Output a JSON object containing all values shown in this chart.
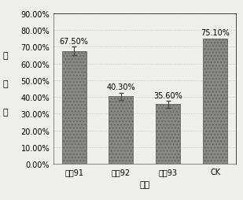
{
  "categories": [
    "处琗91",
    "处琗92",
    "处琗93",
    "CK"
  ],
  "values": [
    0.675,
    0.403,
    0.356,
    0.751
  ],
  "labels": [
    "67.50%",
    "40.30%",
    "35.60%",
    "75.10%"
  ],
  "bar_color": "#888884",
  "bar_edge_color": "#666662",
  "xlabel": "处理",
  "ylabel_chars": [
    "发",
    "病",
    "率"
  ],
  "ylim": [
    0,
    0.9
  ],
  "yticks": [
    0.0,
    0.1,
    0.2,
    0.3,
    0.4,
    0.5,
    0.6,
    0.7,
    0.8,
    0.9
  ],
  "ytick_labels": [
    "0.00%",
    "10.00%",
    "20.00%",
    "30.00%",
    "40.00%",
    "50.00%",
    "60.00%",
    "70.00%",
    "80.00%",
    "90.00%"
  ],
  "background_color": "#f0f0eb",
  "error_bars": [
    0.025,
    0.022,
    0.02,
    0.0
  ],
  "font_size": 7,
  "label_font_size": 7
}
